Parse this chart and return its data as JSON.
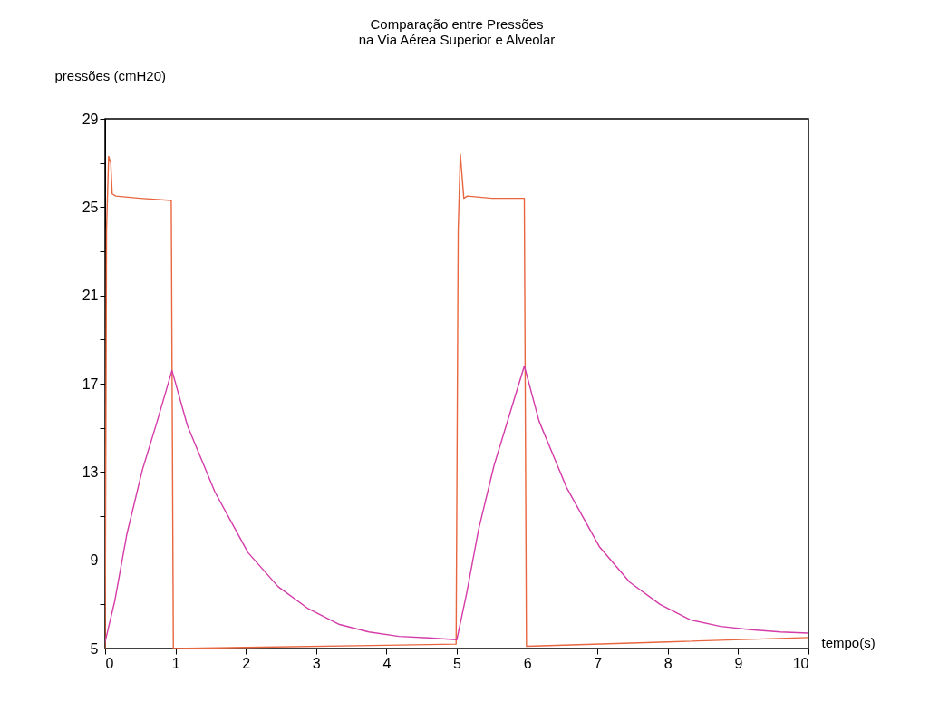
{
  "chart_data": {
    "type": "line",
    "title": [
      "Comparação entre Pressões",
      "na Via Aérea Superior e Alveolar"
    ],
    "xlabel": "tempo(s)",
    "ylabel": "pressões (cmH20)",
    "xlim": [
      0,
      10
    ],
    "ylim": [
      5,
      29
    ],
    "xticks": [
      0,
      1,
      2,
      3,
      4,
      5,
      6,
      7,
      8,
      9,
      10
    ],
    "yticks": [
      5,
      {
        "value": 7,
        "label": null
      },
      9,
      {
        "value": 11,
        "label": null
      },
      13,
      {
        "value": 15,
        "label": null
      },
      17,
      {
        "value": 19,
        "label": null
      },
      21,
      {
        "value": 23,
        "label": null
      },
      25,
      {
        "value": 27,
        "label": null
      },
      29
    ],
    "grid": false,
    "marker": "none",
    "line_style": "solid",
    "series": [
      {
        "color": "#e8663f",
        "x": [
          0,
          0.02,
          0.05,
          0.08,
          0.1,
          0.15,
          0.5,
          0.94,
          0.97,
          2,
          4,
          4.99,
          5.02,
          5.05,
          5.1,
          5.15,
          5.5,
          5.96,
          5.99,
          8,
          10
        ],
        "values": [
          5,
          24,
          27.3,
          27,
          25.6,
          25.5,
          25.4,
          25.3,
          5,
          5.05,
          5.15,
          5.2,
          24,
          27.4,
          25.4,
          25.5,
          25.4,
          25.4,
          5.1,
          5.3,
          5.5
        ]
      },
      {
        "color": "#d43ca8",
        "x": [
          0,
          0.14,
          0.31,
          0.53,
          0.74,
          0.95,
          1.17,
          1.56,
          2.03,
          2.46,
          2.89,
          3.32,
          3.75,
          4.18,
          4.6,
          5,
          5.14,
          5.31,
          5.53,
          5.74,
          5.96,
          6.17,
          6.56,
          7.03,
          7.46,
          7.89,
          8.32,
          8.75,
          9.18,
          9.6,
          10
        ],
        "values": [
          5.3,
          7.2,
          10.2,
          13.1,
          15.3,
          17.6,
          15.1,
          12.1,
          9.35,
          7.8,
          6.8,
          6.1,
          5.75,
          5.55,
          5.48,
          5.4,
          7.5,
          10.4,
          13.3,
          15.5,
          17.8,
          15.3,
          12.3,
          9.6,
          8,
          7,
          6.3,
          6,
          5.85,
          5.75,
          5.7
        ]
      }
    ]
  }
}
